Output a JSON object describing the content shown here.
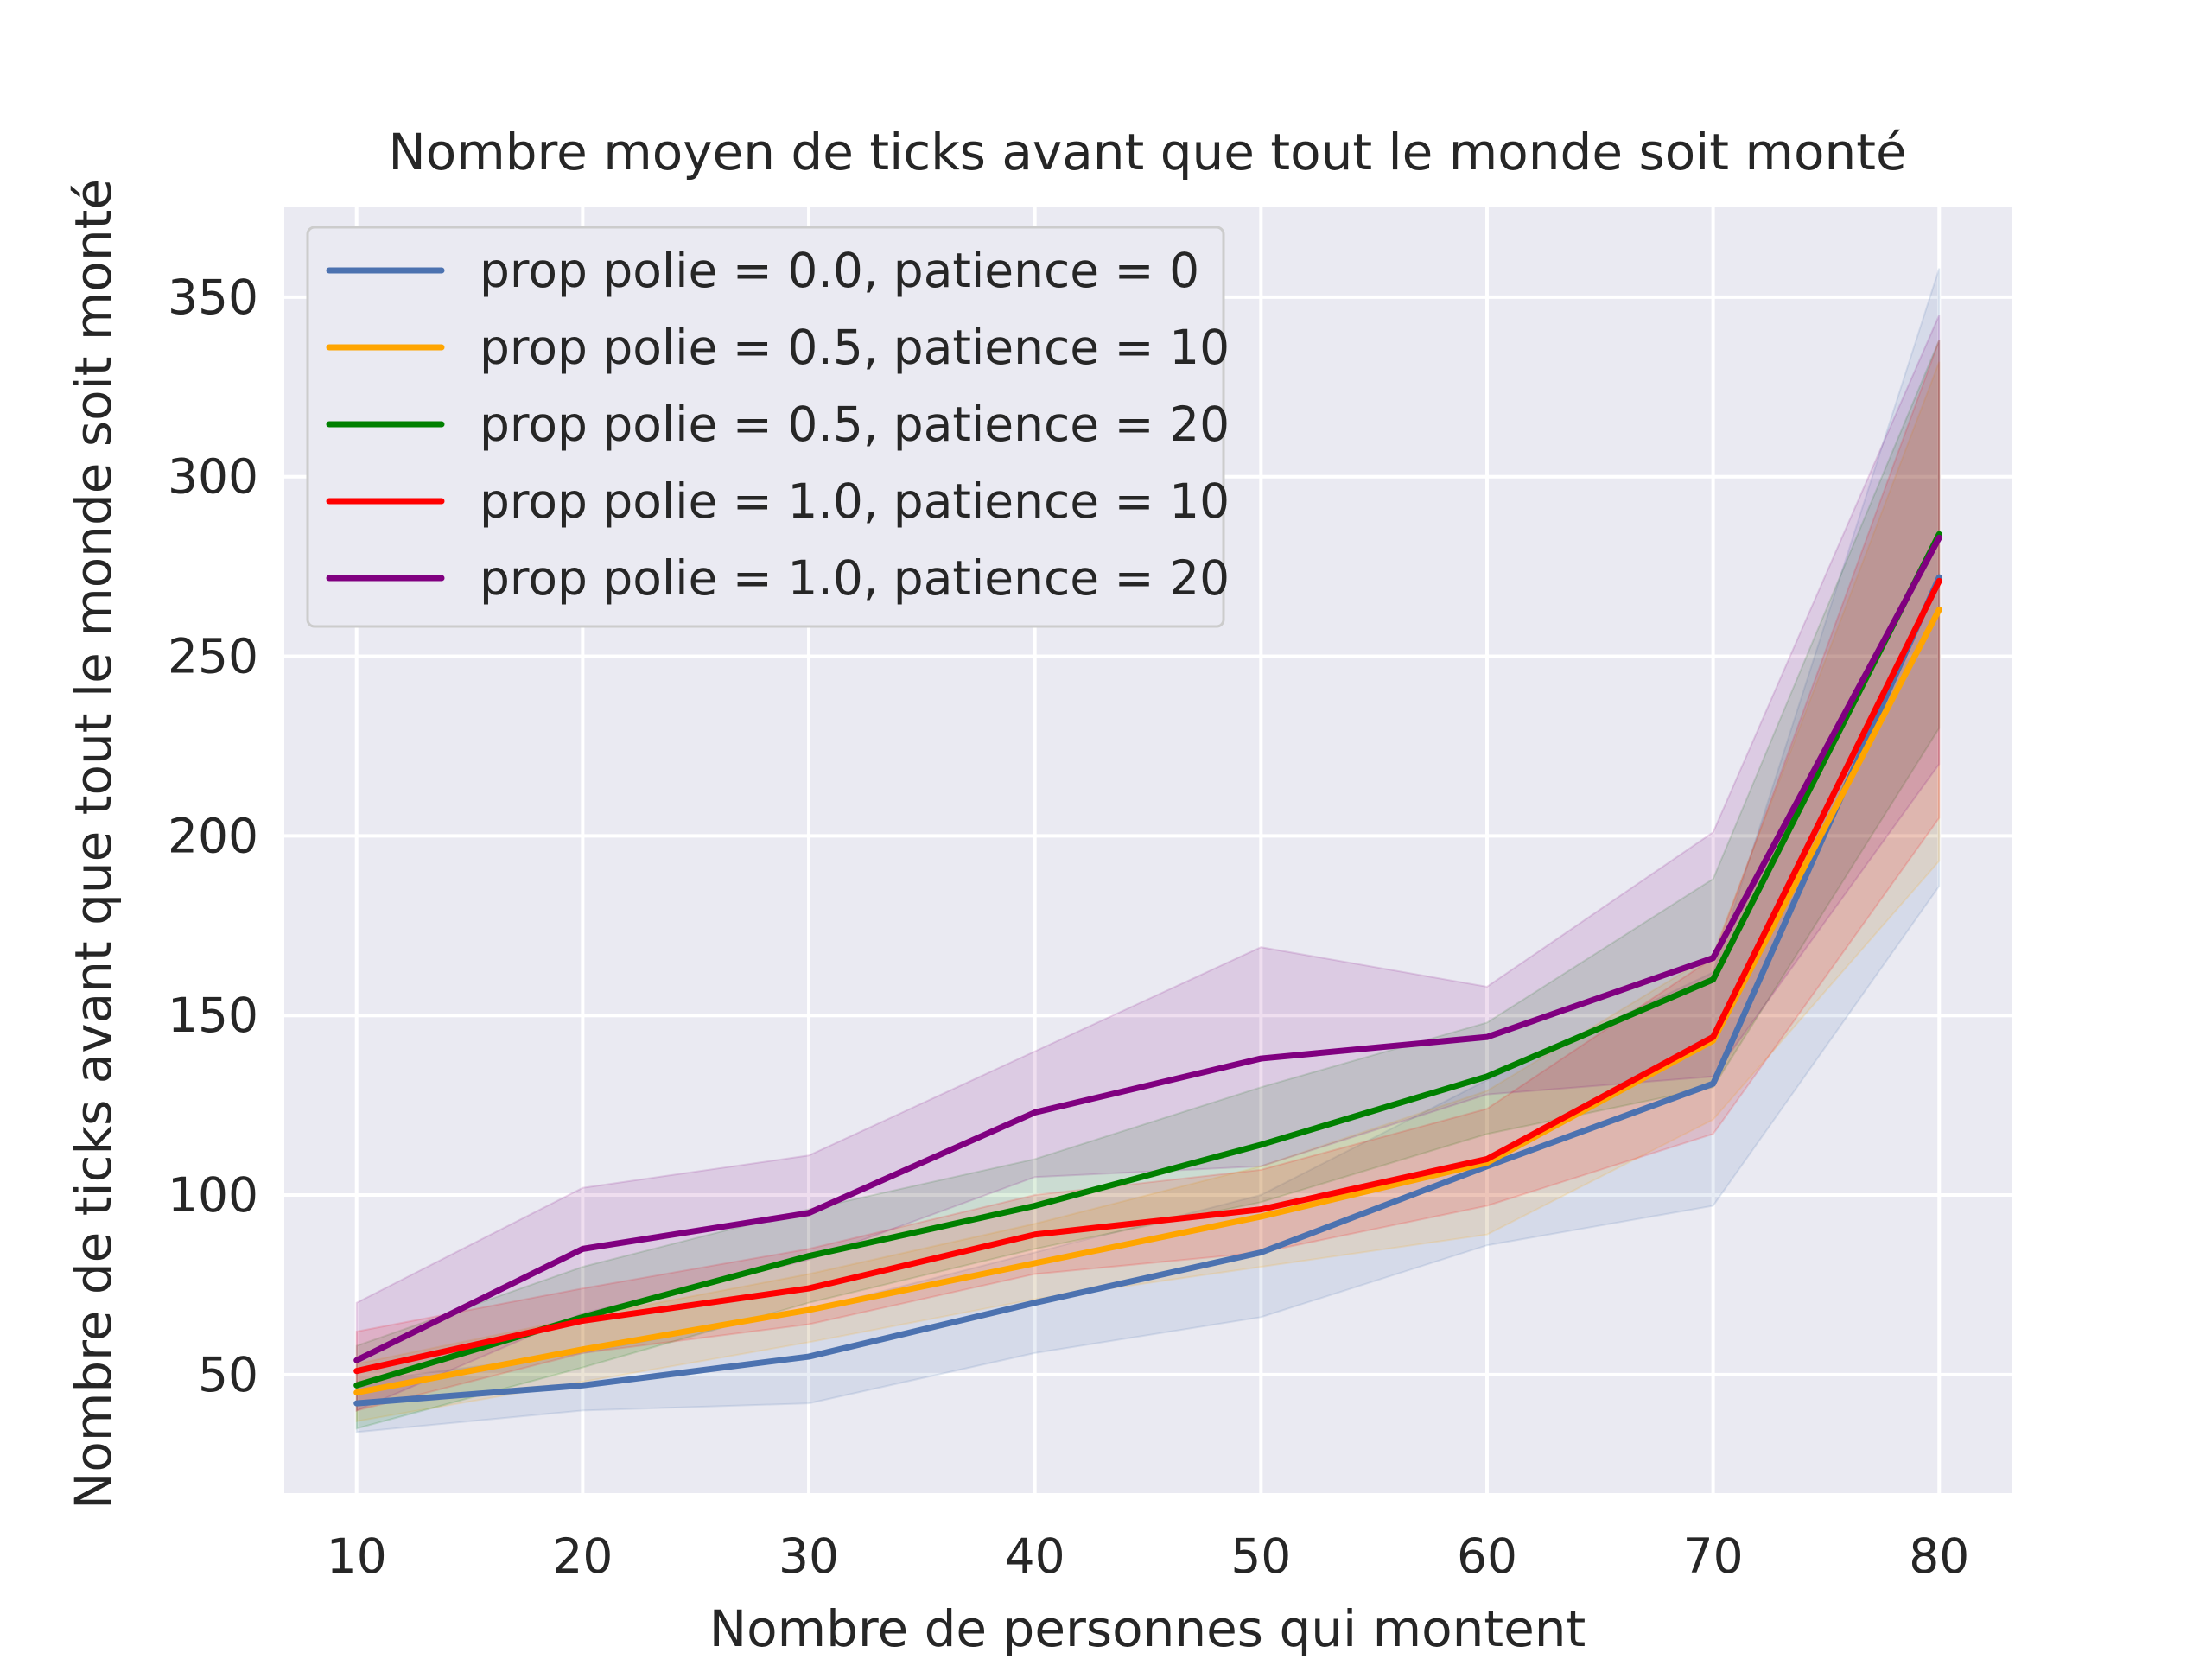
{
  "chart_data": {
    "type": "line",
    "title": "Nombre moyen de ticks avant que tout le monde soit monté",
    "xlabel": "Nombre de personnes qui montent",
    "ylabel": "Nombre de ticks avant que tout le monde soit monté",
    "x": [
      10,
      20,
      30,
      40,
      50,
      60,
      70,
      80
    ],
    "xlim": [
      6.8,
      83.2
    ],
    "ylim": [
      17,
      375
    ],
    "xticks": [
      10,
      20,
      30,
      40,
      50,
      60,
      70,
      80
    ],
    "yticks": [
      50,
      100,
      150,
      200,
      250,
      300,
      350
    ],
    "grid": true,
    "legend_position": "top-left",
    "series": [
      {
        "name": "prop polie = 0.0, patience = 0",
        "color": "#4c72b0",
        "values": [
          42,
          47,
          55,
          70,
          84,
          108,
          131,
          272
        ],
        "lower": [
          34,
          40,
          42,
          56,
          66,
          86,
          97,
          186
        ],
        "upper": [
          48,
          56,
          68,
          84,
          100,
          132,
          162,
          358
        ]
      },
      {
        "name": "prop polie = 0.5, patience = 10",
        "color": "#ffa500",
        "values": [
          45,
          57,
          68,
          81,
          94,
          109,
          143,
          263
        ],
        "lower": [
          37,
          48,
          59,
          71,
          80,
          89,
          121,
          193
        ],
        "upper": [
          53,
          66,
          78,
          92,
          108,
          129,
          167,
          332
        ]
      },
      {
        "name": "prop polie = 0.5, patience = 20",
        "color": "#008000",
        "values": [
          47,
          66,
          83,
          97,
          114,
          133,
          160,
          284
        ],
        "lower": [
          35,
          52,
          70,
          85,
          98,
          117,
          130,
          230
        ],
        "upper": [
          58,
          80,
          96,
          110,
          130,
          148,
          188,
          338
        ]
      },
      {
        "name": "prop polie = 1.0, patience = 10",
        "color": "#ff0000",
        "values": [
          51,
          65,
          74,
          89,
          96,
          110,
          144,
          271
        ],
        "lower": [
          40,
          56,
          64,
          78,
          84,
          97,
          117,
          205
        ],
        "upper": [
          62,
          74,
          85,
          100,
          107,
          124,
          166,
          338
        ]
      },
      {
        "name": "prop polie = 1.0, patience = 20",
        "color": "#800080",
        "values": [
          54,
          85,
          95,
          123,
          138,
          144,
          166,
          283
        ],
        "lower": [
          40,
          67,
          82,
          105,
          108,
          128,
          133,
          220
        ],
        "upper": [
          70,
          102,
          111,
          140,
          169,
          158,
          201,
          345
        ]
      }
    ]
  }
}
